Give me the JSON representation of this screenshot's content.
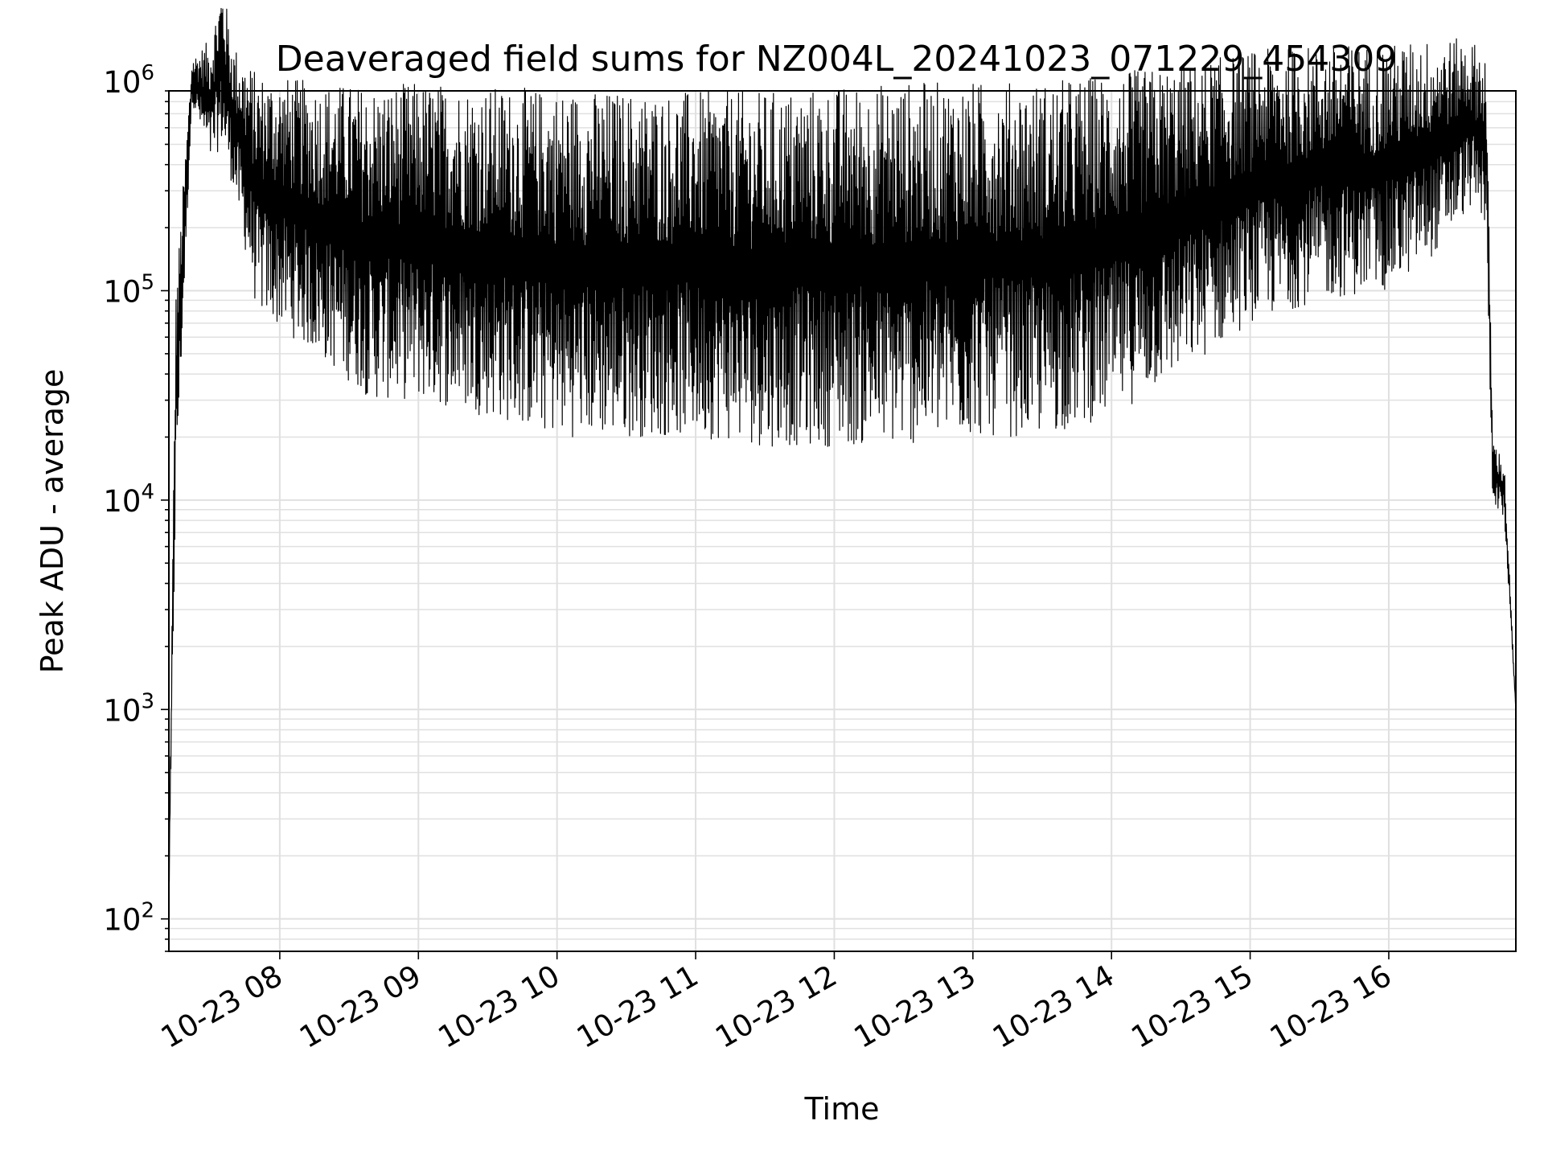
{
  "chart_data": {
    "type": "line",
    "title": "Deaveraged field sums for NZ004L_20241023_071229_454309",
    "xlabel": "Time",
    "ylabel": "Peak ADU - average",
    "y_scale": "log",
    "ylim": [
      70,
      900000
    ],
    "xlim": [
      "2024-10-23 07:12",
      "2024-10-23 16:55"
    ],
    "grid": true,
    "grid_minor": true,
    "line_color": "#000000",
    "grid_color": "#e0e0e0",
    "x_ticks": [
      {
        "t": "2024-10-23 08:00",
        "label": "10-23 08"
      },
      {
        "t": "2024-10-23 09:00",
        "label": "10-23 09"
      },
      {
        "t": "2024-10-23 10:00",
        "label": "10-23 10"
      },
      {
        "t": "2024-10-23 11:00",
        "label": "10-23 11"
      },
      {
        "t": "2024-10-23 12:00",
        "label": "10-23 12"
      },
      {
        "t": "2024-10-23 13:00",
        "label": "10-23 13"
      },
      {
        "t": "2024-10-23 14:00",
        "label": "10-23 14"
      },
      {
        "t": "2024-10-23 15:00",
        "label": "10-23 15"
      },
      {
        "t": "2024-10-23 16:00",
        "label": "10-23 16"
      }
    ],
    "y_ticks": [
      {
        "value": 100,
        "base": "10",
        "exp": "2"
      },
      {
        "value": 1000,
        "base": "10",
        "exp": "3"
      },
      {
        "value": 10000,
        "base": "10",
        "exp": "4"
      },
      {
        "value": 100000,
        "base": "10",
        "exp": "5"
      },
      {
        "value": 1000000,
        "base": "10",
        "exp": "6"
      }
    ],
    "series": [
      {
        "envelope": {
          "x": [
            "2024-10-23 07:12",
            "2024-10-23 07:15",
            "2024-10-23 07:22",
            "2024-10-23 07:30",
            "2024-10-23 07:35",
            "2024-10-23 07:40",
            "2024-10-23 07:50",
            "2024-10-23 08:15",
            "2024-10-23 08:40",
            "2024-10-23 09:00",
            "2024-10-23 09:30",
            "2024-10-23 10:00",
            "2024-10-23 10:30",
            "2024-10-23 11:00",
            "2024-10-23 11:30",
            "2024-10-23 12:00",
            "2024-10-23 12:30",
            "2024-10-23 13:00",
            "2024-10-23 13:30",
            "2024-10-23 14:00",
            "2024-10-23 14:30",
            "2024-10-23 15:00",
            "2024-10-23 15:30",
            "2024-10-23 16:00",
            "2024-10-23 16:20",
            "2024-10-23 16:35",
            "2024-10-23 16:42",
            "2024-10-23 16:45",
            "2024-10-23 16:50",
            "2024-10-23 16:55"
          ],
          "high": [
            150,
            100000,
            1300000,
            1600000,
            3000000,
            1500000,
            1100000,
            1000000,
            950000,
            1000000,
            950000,
            920000,
            900000,
            900000,
            900000,
            950000,
            1000000,
            1000000,
            1000000,
            1100000,
            1200000,
            1400000,
            1500000,
            1500000,
            1600000,
            1600000,
            1400000,
            20000,
            15000,
            1000
          ],
          "low": [
            110,
            10000,
            800000,
            400000,
            500000,
            300000,
            80000,
            50000,
            30000,
            30000,
            25000,
            20000,
            20000,
            20000,
            18000,
            18000,
            18000,
            20000,
            20000,
            25000,
            40000,
            70000,
            90000,
            100000,
            150000,
            250000,
            200000,
            10000,
            8000,
            1000
          ]
        }
      }
    ]
  }
}
